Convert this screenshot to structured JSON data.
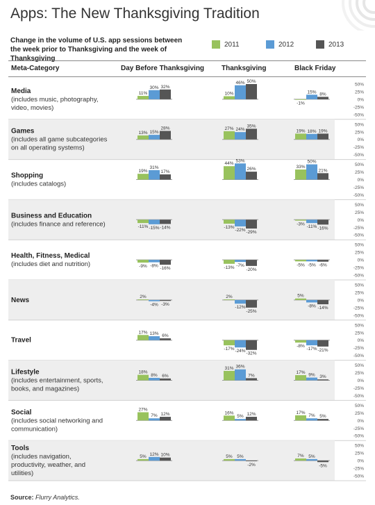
{
  "title": "Apps: The New Thanksgiving Tradition",
  "subtitle": "Change in the volume of U.S. app sessions between the week prior to Thanksgiving and the week of Thanksgiving",
  "source": {
    "label": "Source:",
    "name": "Flurry Analytics."
  },
  "colors": {
    "2011": "#98c25d",
    "2012": "#5b9bd5",
    "2013": "#555555",
    "band": "#eeeeee",
    "axis": "#999999"
  },
  "chart_data": {
    "type": "bar",
    "title": "Apps: The New Thanksgiving Tradition",
    "category_header": "Meta-Category",
    "periods": [
      "Day Before Thanksgiving",
      "Thanksgiving",
      "Black Friday"
    ],
    "series_names": [
      "2011",
      "2012",
      "2013"
    ],
    "ylim": [
      -50,
      50
    ],
    "yticks": [
      "50%",
      "25%",
      "0%",
      "-25%",
      "-50%"
    ],
    "grid": false,
    "legend_position": "top-right",
    "categories": [
      {
        "name": "Media",
        "sub": "(includes music, photography, video, movies)",
        "values": [
          [
            11,
            30,
            32
          ],
          [
            10,
            46,
            50
          ],
          [
            -1,
            15,
            8
          ]
        ]
      },
      {
        "name": "Games",
        "sub": "(includes all game subcategories on all operating systems)",
        "values": [
          [
            13,
            15,
            28
          ],
          [
            27,
            24,
            35
          ],
          [
            19,
            18,
            19
          ]
        ]
      },
      {
        "name": "Shopping",
        "sub": "(includes catalogs)",
        "values": [
          [
            19,
            31,
            17
          ],
          [
            44,
            53,
            26
          ],
          [
            33,
            50,
            21
          ]
        ]
      },
      {
        "name": "Business and Education",
        "sub": "(includes finance and reference)",
        "values": [
          [
            -11,
            -15,
            -14
          ],
          [
            -13,
            -22,
            -29
          ],
          [
            -3,
            -11,
            -16
          ]
        ]
      },
      {
        "name": "Health, Fitness, Medical",
        "sub": "(includes diet and nutrition)",
        "values": [
          [
            -9,
            -8,
            -16
          ],
          [
            -13,
            -7,
            -20
          ],
          [
            -5,
            -5,
            -6
          ]
        ]
      },
      {
        "name": "News",
        "sub": "",
        "values": [
          [
            2,
            -4,
            -3
          ],
          [
            2,
            -12,
            -25
          ],
          [
            5,
            -8,
            -14
          ]
        ]
      },
      {
        "name": "Travel",
        "sub": "",
        "values": [
          [
            17,
            13,
            6
          ],
          [
            -17,
            -24,
            -32
          ],
          [
            -8,
            -17,
            -21
          ]
        ]
      },
      {
        "name": "Lifestyle",
        "sub": "(includes entertainment, sports, books, and magazines)",
        "values": [
          [
            18,
            8,
            6
          ],
          [
            31,
            36,
            7
          ],
          [
            17,
            9,
            3
          ]
        ]
      },
      {
        "name": "Social",
        "sub": "(includes social networking and communication)",
        "values": [
          [
            27,
            7,
            12
          ],
          [
            16,
            5,
            12
          ],
          [
            17,
            7,
            5
          ]
        ]
      },
      {
        "name": "Tools",
        "sub": "(includes navigation, productivity, weather, and utilities)",
        "values": [
          [
            5,
            12,
            10
          ],
          [
            5,
            5,
            -2
          ],
          [
            7,
            5,
            -5
          ]
        ]
      }
    ]
  }
}
